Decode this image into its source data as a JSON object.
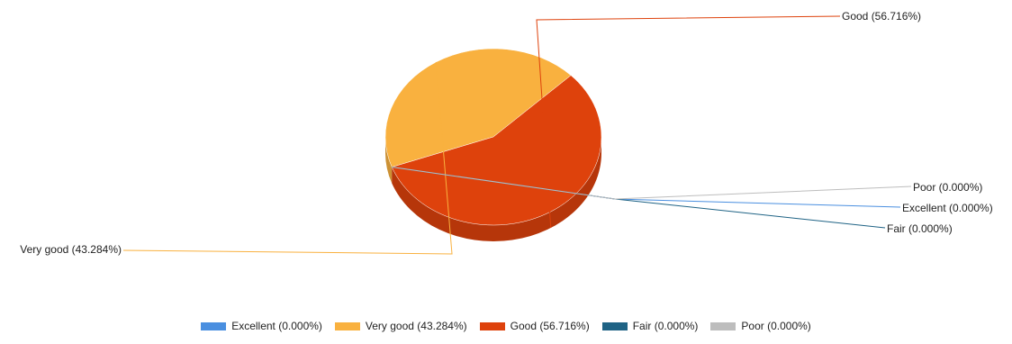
{
  "chart_data": {
    "type": "pie",
    "title": "",
    "slices": [
      {
        "label": "Excellent",
        "value": 0.0,
        "display": "Excellent (0.000%)",
        "color": "#4a8fe0"
      },
      {
        "label": "Very good",
        "value": 43.284,
        "display": "Very good (43.284%)",
        "color": "#f9b13f"
      },
      {
        "label": "Good",
        "value": 56.716,
        "display": "Good (56.716%)",
        "color": "#de420c"
      },
      {
        "label": "Fair",
        "value": 0.0,
        "display": "Fair (0.000%)",
        "color": "#1f6385"
      },
      {
        "label": "Poor",
        "value": 0.0,
        "display": "Poor (0.000%)",
        "color": "#bdbdbd"
      }
    ],
    "legend": {
      "position": "bottom"
    },
    "style": "3d"
  }
}
